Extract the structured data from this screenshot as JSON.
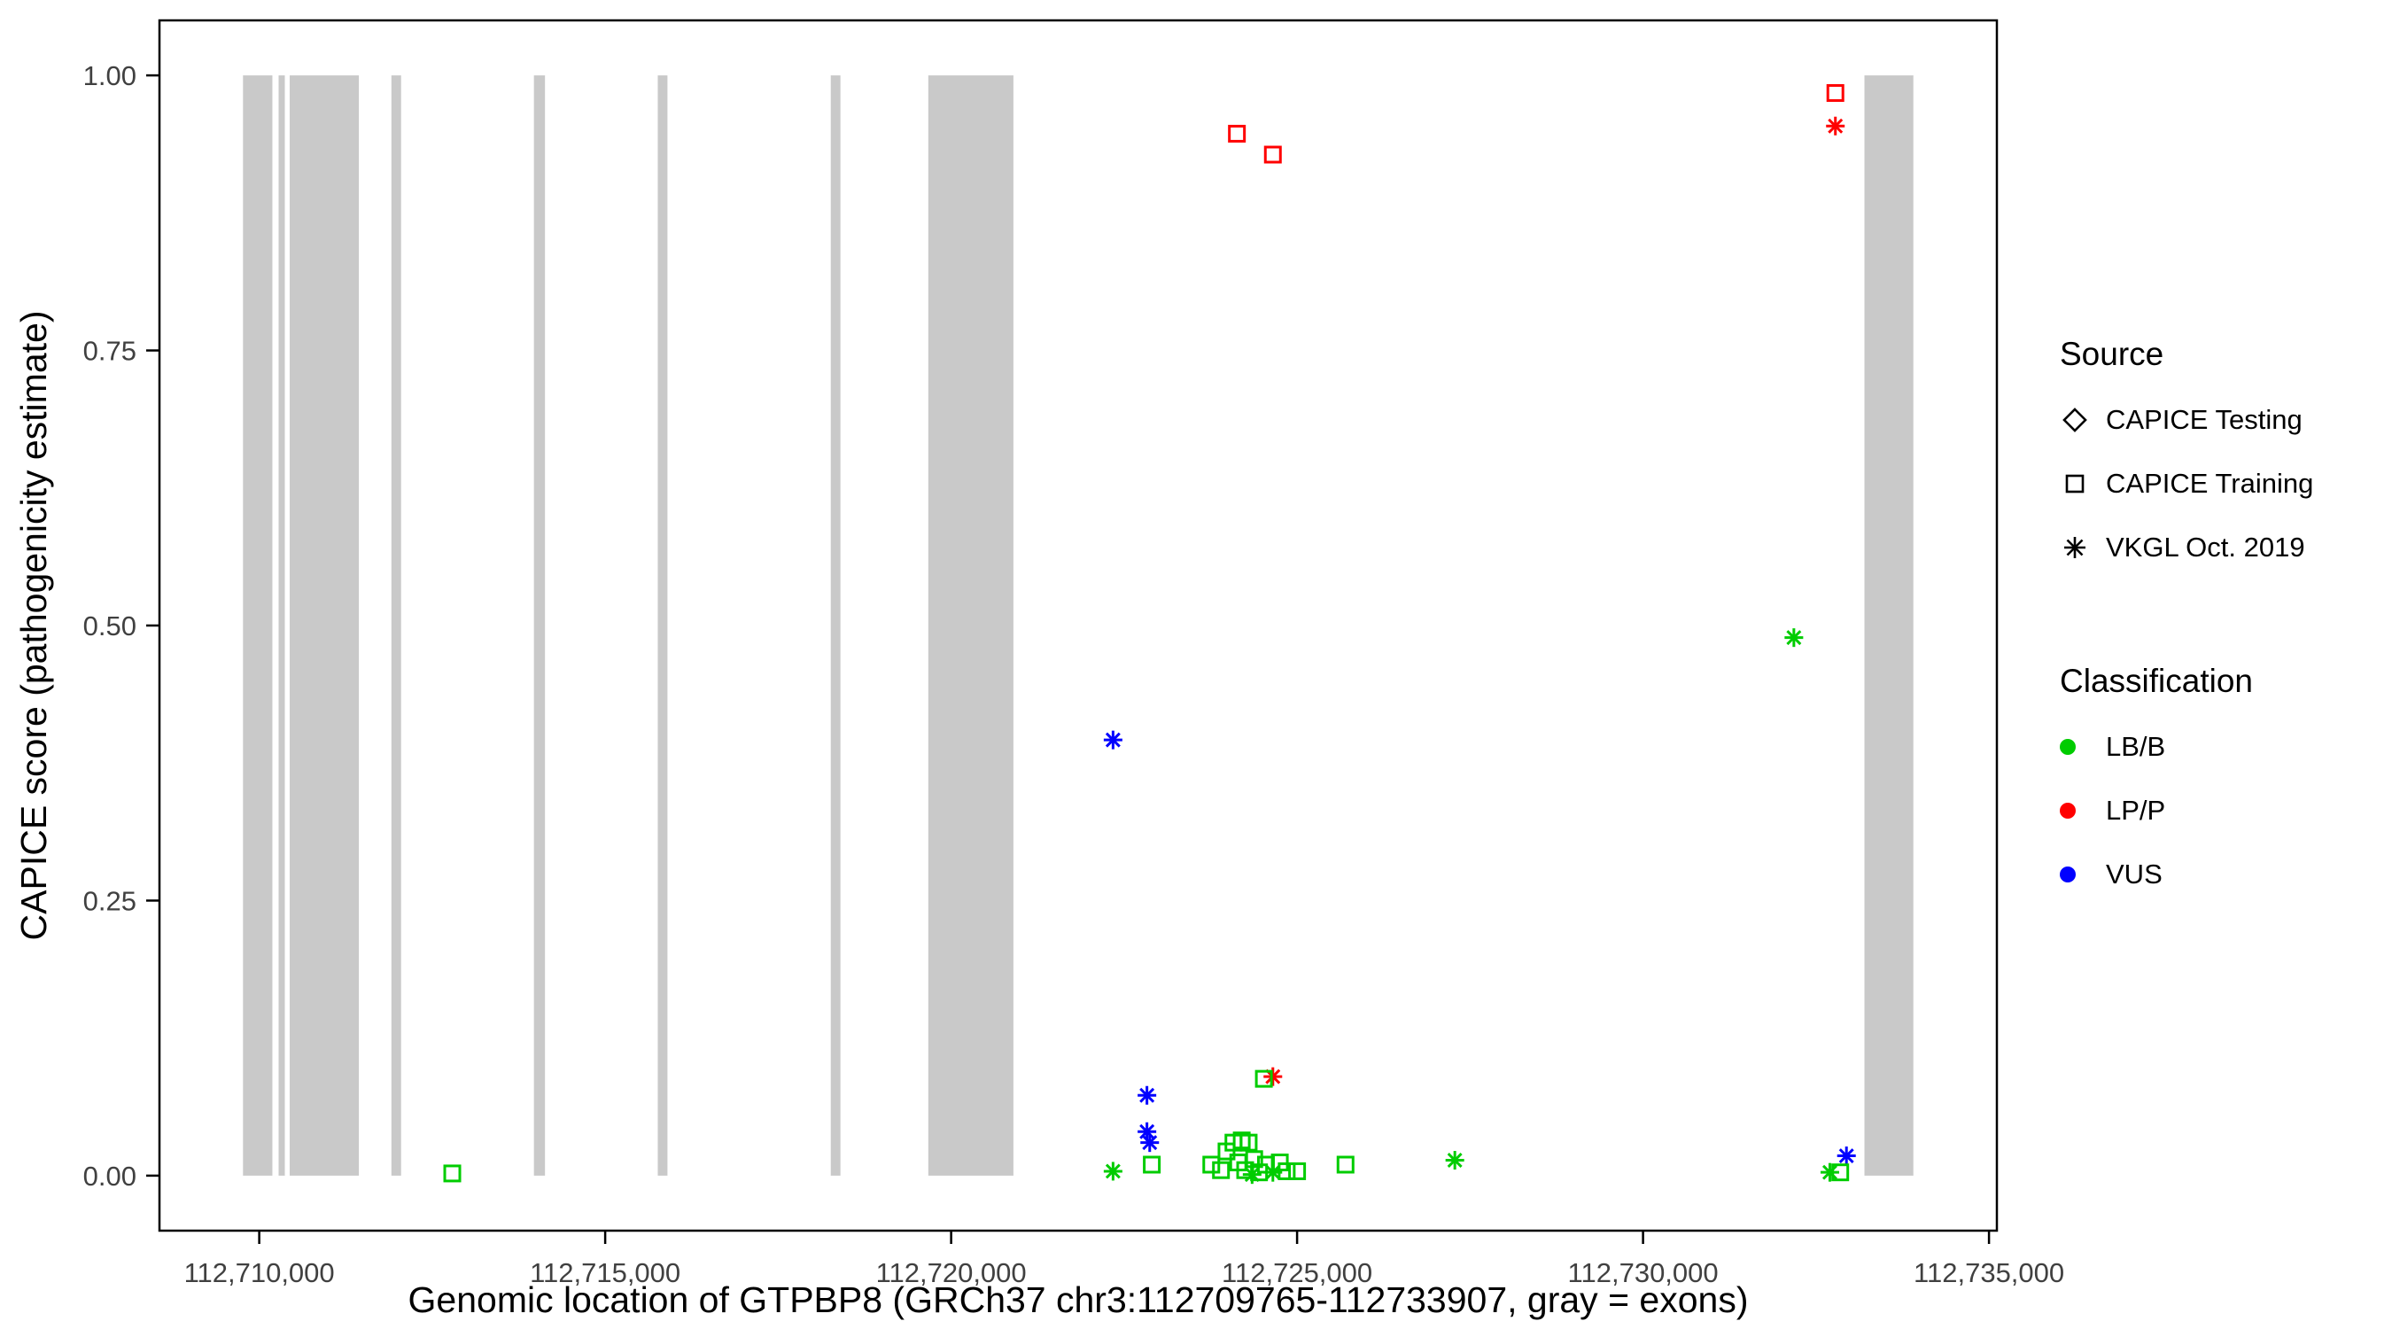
{
  "chart_data": {
    "type": "scatter",
    "title": "",
    "xlabel": "Genomic location of GTPBP8 (GRCh37 chr3:112709765-112733907, gray = exons)",
    "ylabel": "CAPICE score (pathogenicity estimate)",
    "xlim": [
      112708558,
      112735114
    ],
    "ylim": [
      -0.05,
      1.05
    ],
    "grid": "off",
    "x_ticks": [
      {
        "value": 112710000,
        "label": "112,710,000"
      },
      {
        "value": 112715000,
        "label": "112,715,000"
      },
      {
        "value": 112720000,
        "label": "112,720,000"
      },
      {
        "value": 112725000,
        "label": "112,725,000"
      },
      {
        "value": 112730000,
        "label": "112,730,000"
      },
      {
        "value": 112735000,
        "label": "112,735,000"
      }
    ],
    "y_ticks": [
      {
        "value": 0.0,
        "label": "0.00"
      },
      {
        "value": 0.25,
        "label": "0.25"
      },
      {
        "value": 0.5,
        "label": "0.50"
      },
      {
        "value": 0.75,
        "label": "0.75"
      },
      {
        "value": 1.0,
        "label": "1.00"
      }
    ],
    "exon_color": "#c9c9c9",
    "exons": [
      [
        112709765,
        112710190
      ],
      [
        112710280,
        112710370
      ],
      [
        112710440,
        112711440
      ],
      [
        112711910,
        112712050
      ],
      [
        112713970,
        112714130
      ],
      [
        112715760,
        112715900
      ],
      [
        112718260,
        112718400
      ],
      [
        112719670,
        112720900
      ],
      [
        112733200,
        112733907
      ]
    ],
    "colors": {
      "LB/B": "#00CC00",
      "LP/P": "#FF0000",
      "VUS": "#0000FF"
    },
    "legend_source": {
      "title": "Source",
      "items": [
        {
          "shape": "diamond",
          "label": "CAPICE Testing"
        },
        {
          "shape": "square",
          "label": "CAPICE Training"
        },
        {
          "shape": "asterisk",
          "label": "VKGL Oct. 2019"
        }
      ]
    },
    "legend_classification": {
      "title": "Classification",
      "items": [
        {
          "color": "#00CC00",
          "label": "LB/B"
        },
        {
          "color": "#FF0000",
          "label": "LP/P"
        },
        {
          "color": "#0000FF",
          "label": "VUS"
        }
      ]
    },
    "points": [
      {
        "x": 112724130,
        "y": 0.947,
        "shape": "square",
        "classification": "LP/P",
        "source": "CAPICE Training"
      },
      {
        "x": 112724650,
        "y": 0.928,
        "shape": "square",
        "classification": "LP/P",
        "source": "CAPICE Training"
      },
      {
        "x": 112732780,
        "y": 0.984,
        "shape": "square",
        "classification": "LP/P",
        "source": "CAPICE Training"
      },
      {
        "x": 112732780,
        "y": 0.954,
        "shape": "asterisk",
        "classification": "LP/P",
        "source": "VKGL Oct. 2019"
      },
      {
        "x": 112724650,
        "y": 0.09,
        "shape": "asterisk",
        "classification": "LP/P",
        "source": "VKGL Oct. 2019"
      },
      {
        "x": 112722340,
        "y": 0.396,
        "shape": "asterisk",
        "classification": "VUS",
        "source": "VKGL Oct. 2019"
      },
      {
        "x": 112722830,
        "y": 0.073,
        "shape": "asterisk",
        "classification": "VUS",
        "source": "VKGL Oct. 2019"
      },
      {
        "x": 112722830,
        "y": 0.04,
        "shape": "asterisk",
        "classification": "VUS",
        "source": "VKGL Oct. 2019"
      },
      {
        "x": 112722870,
        "y": 0.03,
        "shape": "asterisk",
        "classification": "VUS",
        "source": "VKGL Oct. 2019"
      },
      {
        "x": 112732940,
        "y": 0.018,
        "shape": "asterisk",
        "classification": "VUS",
        "source": "VKGL Oct. 2019"
      },
      {
        "x": 112732180,
        "y": 0.489,
        "shape": "asterisk",
        "classification": "LB/B",
        "source": "VKGL Oct. 2019"
      },
      {
        "x": 112712790,
        "y": 0.002,
        "shape": "square",
        "classification": "LB/B",
        "source": "CAPICE Training"
      },
      {
        "x": 112722340,
        "y": 0.004,
        "shape": "asterisk",
        "classification": "LB/B",
        "source": "VKGL Oct. 2019"
      },
      {
        "x": 112722900,
        "y": 0.01,
        "shape": "square",
        "classification": "LB/B",
        "source": "CAPICE Training"
      },
      {
        "x": 112723760,
        "y": 0.01,
        "shape": "square",
        "classification": "LB/B",
        "source": "CAPICE Training"
      },
      {
        "x": 112723900,
        "y": 0.005,
        "shape": "square",
        "classification": "LB/B",
        "source": "CAPICE Training"
      },
      {
        "x": 112723980,
        "y": 0.022,
        "shape": "square",
        "classification": "LB/B",
        "source": "CAPICE Training"
      },
      {
        "x": 112724080,
        "y": 0.03,
        "shape": "square",
        "classification": "LB/B",
        "source": "CAPICE Training"
      },
      {
        "x": 112724200,
        "y": 0.032,
        "shape": "square",
        "classification": "LB/B",
        "source": "CAPICE Training"
      },
      {
        "x": 112724300,
        "y": 0.03,
        "shape": "square",
        "classification": "LB/B",
        "source": "CAPICE Training"
      },
      {
        "x": 112724150,
        "y": 0.012,
        "shape": "square",
        "classification": "LB/B",
        "source": "CAPICE Training"
      },
      {
        "x": 112724250,
        "y": 0.005,
        "shape": "square",
        "classification": "LB/B",
        "source": "CAPICE Training"
      },
      {
        "x": 112724380,
        "y": 0.015,
        "shape": "square",
        "classification": "LB/B",
        "source": "CAPICE Training"
      },
      {
        "x": 112724450,
        "y": 0.003,
        "shape": "square",
        "classification": "LB/B",
        "source": "CAPICE Training"
      },
      {
        "x": 112724520,
        "y": 0.088,
        "shape": "square",
        "classification": "LB/B",
        "source": "CAPICE Training"
      },
      {
        "x": 112724550,
        "y": 0.01,
        "shape": "square",
        "classification": "LB/B",
        "source": "CAPICE Training"
      },
      {
        "x": 112724350,
        "y": 0.001,
        "shape": "asterisk",
        "classification": "LB/B",
        "source": "VKGL Oct. 2019"
      },
      {
        "x": 112724650,
        "y": 0.003,
        "shape": "asterisk",
        "classification": "LB/B",
        "source": "VKGL Oct. 2019"
      },
      {
        "x": 112724750,
        "y": 0.012,
        "shape": "square",
        "classification": "LB/B",
        "source": "CAPICE Training"
      },
      {
        "x": 112724850,
        "y": 0.004,
        "shape": "square",
        "classification": "LB/B",
        "source": "CAPICE Training"
      },
      {
        "x": 112725000,
        "y": 0.004,
        "shape": "square",
        "classification": "LB/B",
        "source": "CAPICE Training"
      },
      {
        "x": 112725700,
        "y": 0.01,
        "shape": "square",
        "classification": "LB/B",
        "source": "CAPICE Training"
      },
      {
        "x": 112727280,
        "y": 0.014,
        "shape": "asterisk",
        "classification": "LB/B",
        "source": "VKGL Oct. 2019"
      },
      {
        "x": 112732700,
        "y": 0.003,
        "shape": "asterisk",
        "classification": "LB/B",
        "source": "VKGL Oct. 2019"
      },
      {
        "x": 112732850,
        "y": 0.003,
        "shape": "square",
        "classification": "LB/B",
        "source": "CAPICE Training"
      }
    ]
  }
}
